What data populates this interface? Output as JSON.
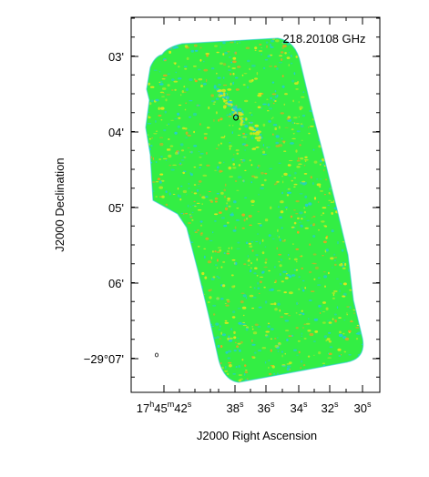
{
  "figure": {
    "frequency_label": "218.20108 GHz",
    "x_axis_title": "J2000 Right Ascension",
    "y_axis_title": "J2000 Declination",
    "x_ticks": [
      {
        "main": "17",
        "h": "h",
        "mid": "45",
        "m": "m",
        "last": "42",
        "s": "s"
      },
      {
        "main": "38",
        "s": "s"
      },
      {
        "main": "36",
        "s": "s"
      },
      {
        "main": "34",
        "s": "s"
      },
      {
        "main": "32",
        "s": "s"
      },
      {
        "main": "30",
        "s": "s"
      }
    ],
    "y_ticks": [
      "03'",
      "04'",
      "05'",
      "06'",
      "−29°07'"
    ],
    "map_colors": {
      "background_field": "#33ee44",
      "speckle_yellow": "#e8e61a",
      "speckle_cyan": "#22ccd8",
      "speckle_orange": "#f0a020"
    }
  }
}
